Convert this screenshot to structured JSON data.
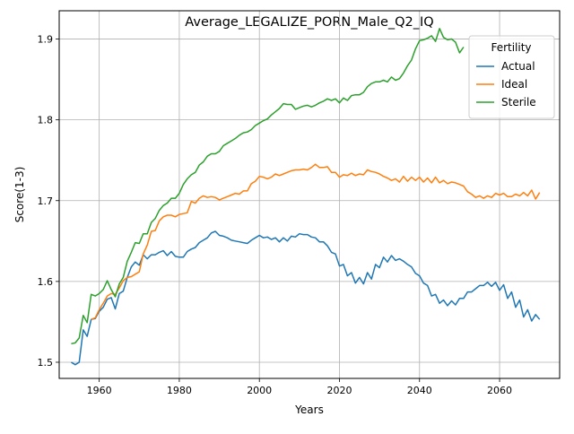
{
  "chart_data": {
    "type": "line",
    "title": "Average_LEGALIZE_PORN_Male_Q2_IQ",
    "xlabel": "Years",
    "ylabel": "Score(1-3)",
    "xlim": [
      1950,
      2075
    ],
    "ylim": [
      1.48,
      1.935
    ],
    "xticks": [
      1960,
      1980,
      2000,
      2020,
      2040,
      2060
    ],
    "yticks": [
      1.5,
      1.6,
      1.7,
      1.8,
      1.9
    ],
    "xtick_labels": [
      "1960",
      "1980",
      "2000",
      "2020",
      "2040",
      "2060"
    ],
    "ytick_labels": [
      "1.5",
      "1.6",
      "1.7",
      "1.8",
      "1.9"
    ],
    "grid": true,
    "legend": {
      "title": "Fertility",
      "placement": "top-right"
    },
    "series": [
      {
        "name": "Actual",
        "color": "#1f77b4",
        "x": [
          1953,
          1954,
          1955,
          1956,
          1957,
          1958,
          1959,
          1960,
          1961,
          1962,
          1963,
          1964,
          1965,
          1966,
          1967,
          1968,
          1969,
          1970,
          1971,
          1972,
          1973,
          1974,
          1975,
          1976,
          1977,
          1978,
          1979,
          1980,
          1981,
          1982,
          1983,
          1984,
          1985,
          1986,
          1987,
          1988,
          1989,
          1990,
          1991,
          1992,
          1993,
          1994,
          1995,
          1996,
          1997,
          1998,
          1999,
          2000,
          2001,
          2002,
          2003,
          2004,
          2005,
          2006,
          2007,
          2008,
          2009,
          2010,
          2011,
          2012,
          2013,
          2014,
          2015,
          2016,
          2017,
          2018,
          2019,
          2020,
          2021,
          2022,
          2023,
          2024,
          2025,
          2026,
          2027,
          2028,
          2029,
          2030,
          2031,
          2032,
          2033,
          2034,
          2035,
          2036,
          2037,
          2038,
          2039,
          2040,
          2041,
          2042,
          2043,
          2044,
          2045,
          2046,
          2047,
          2048,
          2049,
          2050,
          2051,
          2052,
          2053,
          2054,
          2055,
          2056,
          2057,
          2058,
          2059,
          2060,
          2061,
          2062,
          2063,
          2064,
          2065,
          2066,
          2067,
          2068,
          2069,
          2070
        ],
        "values": [
          1.5,
          1.497,
          1.5,
          1.54,
          1.532,
          1.553,
          1.554,
          1.563,
          1.568,
          1.578,
          1.58,
          1.566,
          1.585,
          1.588,
          1.605,
          1.618,
          1.624,
          1.62,
          1.633,
          1.628,
          1.633,
          1.633,
          1.636,
          1.638,
          1.632,
          1.637,
          1.631,
          1.63,
          1.63,
          1.637,
          1.64,
          1.642,
          1.648,
          1.651,
          1.654,
          1.66,
          1.662,
          1.657,
          1.656,
          1.654,
          1.651,
          1.65,
          1.649,
          1.648,
          1.647,
          1.651,
          1.654,
          1.657,
          1.654,
          1.655,
          1.652,
          1.654,
          1.649,
          1.654,
          1.65,
          1.656,
          1.655,
          1.659,
          1.658,
          1.658,
          1.655,
          1.654,
          1.649,
          1.649,
          1.644,
          1.636,
          1.634,
          1.619,
          1.621,
          1.607,
          1.611,
          1.598,
          1.605,
          1.597,
          1.611,
          1.603,
          1.621,
          1.617,
          1.63,
          1.624,
          1.632,
          1.626,
          1.628,
          1.625,
          1.621,
          1.618,
          1.61,
          1.607,
          1.598,
          1.595,
          1.582,
          1.584,
          1.573,
          1.577,
          1.57,
          1.576,
          1.571,
          1.579,
          1.579,
          1.587,
          1.587,
          1.591,
          1.595,
          1.595,
          1.599,
          1.594,
          1.599,
          1.589,
          1.596,
          1.579,
          1.587,
          1.568,
          1.577,
          1.556,
          1.565,
          1.551,
          1.559,
          1.553
        ]
      },
      {
        "name": "Ideal",
        "color": "#ff7f0e",
        "x": [
          1958,
          1959,
          1960,
          1961,
          1962,
          1963,
          1964,
          1965,
          1966,
          1967,
          1968,
          1969,
          1970,
          1971,
          1972,
          1973,
          1974,
          1975,
          1976,
          1977,
          1978,
          1979,
          1980,
          1981,
          1982,
          1983,
          1984,
          1985,
          1986,
          1987,
          1988,
          1989,
          1990,
          1991,
          1992,
          1993,
          1994,
          1995,
          1996,
          1997,
          1998,
          1999,
          2000,
          2001,
          2002,
          2003,
          2004,
          2005,
          2006,
          2007,
          2008,
          2009,
          2010,
          2011,
          2012,
          2013,
          2014,
          2015,
          2016,
          2017,
          2018,
          2019,
          2020,
          2021,
          2022,
          2023,
          2024,
          2025,
          2026,
          2027,
          2028,
          2029,
          2030,
          2031,
          2032,
          2033,
          2034,
          2035,
          2036,
          2037,
          2038,
          2039,
          2040,
          2041,
          2042,
          2043,
          2044,
          2045,
          2046,
          2047,
          2048,
          2049,
          2050,
          2051,
          2052,
          2053,
          2054,
          2055,
          2056,
          2057,
          2058,
          2059,
          2060,
          2061,
          2062,
          2063,
          2064,
          2065,
          2066,
          2067,
          2068,
          2069,
          2070
        ],
        "values": [
          1.553,
          1.555,
          1.565,
          1.573,
          1.582,
          1.585,
          1.584,
          1.592,
          1.601,
          1.605,
          1.606,
          1.609,
          1.612,
          1.634,
          1.645,
          1.662,
          1.663,
          1.675,
          1.68,
          1.682,
          1.682,
          1.68,
          1.683,
          1.684,
          1.685,
          1.699,
          1.697,
          1.703,
          1.706,
          1.704,
          1.705,
          1.704,
          1.701,
          1.703,
          1.705,
          1.707,
          1.709,
          1.708,
          1.712,
          1.712,
          1.721,
          1.724,
          1.73,
          1.729,
          1.727,
          1.729,
          1.733,
          1.731,
          1.733,
          1.735,
          1.737,
          1.738,
          1.738,
          1.739,
          1.738,
          1.741,
          1.745,
          1.741,
          1.741,
          1.742,
          1.735,
          1.735,
          1.729,
          1.732,
          1.731,
          1.734,
          1.731,
          1.733,
          1.732,
          1.738,
          1.736,
          1.735,
          1.733,
          1.73,
          1.728,
          1.725,
          1.727,
          1.723,
          1.73,
          1.724,
          1.729,
          1.725,
          1.729,
          1.723,
          1.728,
          1.722,
          1.729,
          1.722,
          1.725,
          1.721,
          1.723,
          1.722,
          1.72,
          1.718,
          1.711,
          1.708,
          1.704,
          1.706,
          1.703,
          1.706,
          1.704,
          1.709,
          1.707,
          1.709,
          1.705,
          1.705,
          1.708,
          1.706,
          1.71,
          1.706,
          1.713,
          1.702,
          1.71
        ]
      },
      {
        "name": "Sterile",
        "color": "#2ca02c",
        "x": [
          1953,
          1954,
          1955,
          1956,
          1957,
          1958,
          1959,
          1960,
          1961,
          1962,
          1963,
          1964,
          1965,
          1966,
          1967,
          1968,
          1969,
          1970,
          1971,
          1972,
          1973,
          1974,
          1975,
          1976,
          1977,
          1978,
          1979,
          1980,
          1981,
          1982,
          1983,
          1984,
          1985,
          1986,
          1987,
          1988,
          1989,
          1990,
          1991,
          1992,
          1993,
          1994,
          1995,
          1996,
          1997,
          1998,
          1999,
          2000,
          2001,
          2002,
          2003,
          2004,
          2005,
          2006,
          2007,
          2008,
          2009,
          2010,
          2011,
          2012,
          2013,
          2014,
          2015,
          2016,
          2017,
          2018,
          2019,
          2020,
          2021,
          2022,
          2023,
          2024,
          2025,
          2026,
          2027,
          2028,
          2029,
          2030,
          2031,
          2032,
          2033,
          2034,
          2035,
          2036,
          2037,
          2038,
          2039,
          2040,
          2041,
          2042,
          2043,
          2044,
          2045,
          2046,
          2047,
          2048,
          2049,
          2050,
          2051
        ],
        "values": [
          1.523,
          1.524,
          1.53,
          1.558,
          1.549,
          1.584,
          1.582,
          1.585,
          1.59,
          1.601,
          1.59,
          1.581,
          1.597,
          1.605,
          1.625,
          1.636,
          1.648,
          1.647,
          1.659,
          1.659,
          1.673,
          1.678,
          1.688,
          1.694,
          1.697,
          1.703,
          1.703,
          1.709,
          1.72,
          1.727,
          1.732,
          1.735,
          1.744,
          1.748,
          1.755,
          1.758,
          1.758,
          1.761,
          1.768,
          1.771,
          1.774,
          1.777,
          1.781,
          1.784,
          1.785,
          1.788,
          1.793,
          1.796,
          1.799,
          1.801,
          1.806,
          1.81,
          1.814,
          1.82,
          1.819,
          1.819,
          1.813,
          1.815,
          1.817,
          1.818,
          1.816,
          1.818,
          1.821,
          1.823,
          1.826,
          1.824,
          1.826,
          1.821,
          1.827,
          1.824,
          1.83,
          1.831,
          1.831,
          1.834,
          1.841,
          1.845,
          1.847,
          1.847,
          1.849,
          1.847,
          1.853,
          1.849,
          1.851,
          1.858,
          1.867,
          1.874,
          1.888,
          1.898,
          1.899,
          1.901,
          1.904,
          1.897,
          1.913,
          1.902,
          1.899,
          1.9,
          1.896,
          1.883,
          1.89
        ]
      }
    ]
  }
}
